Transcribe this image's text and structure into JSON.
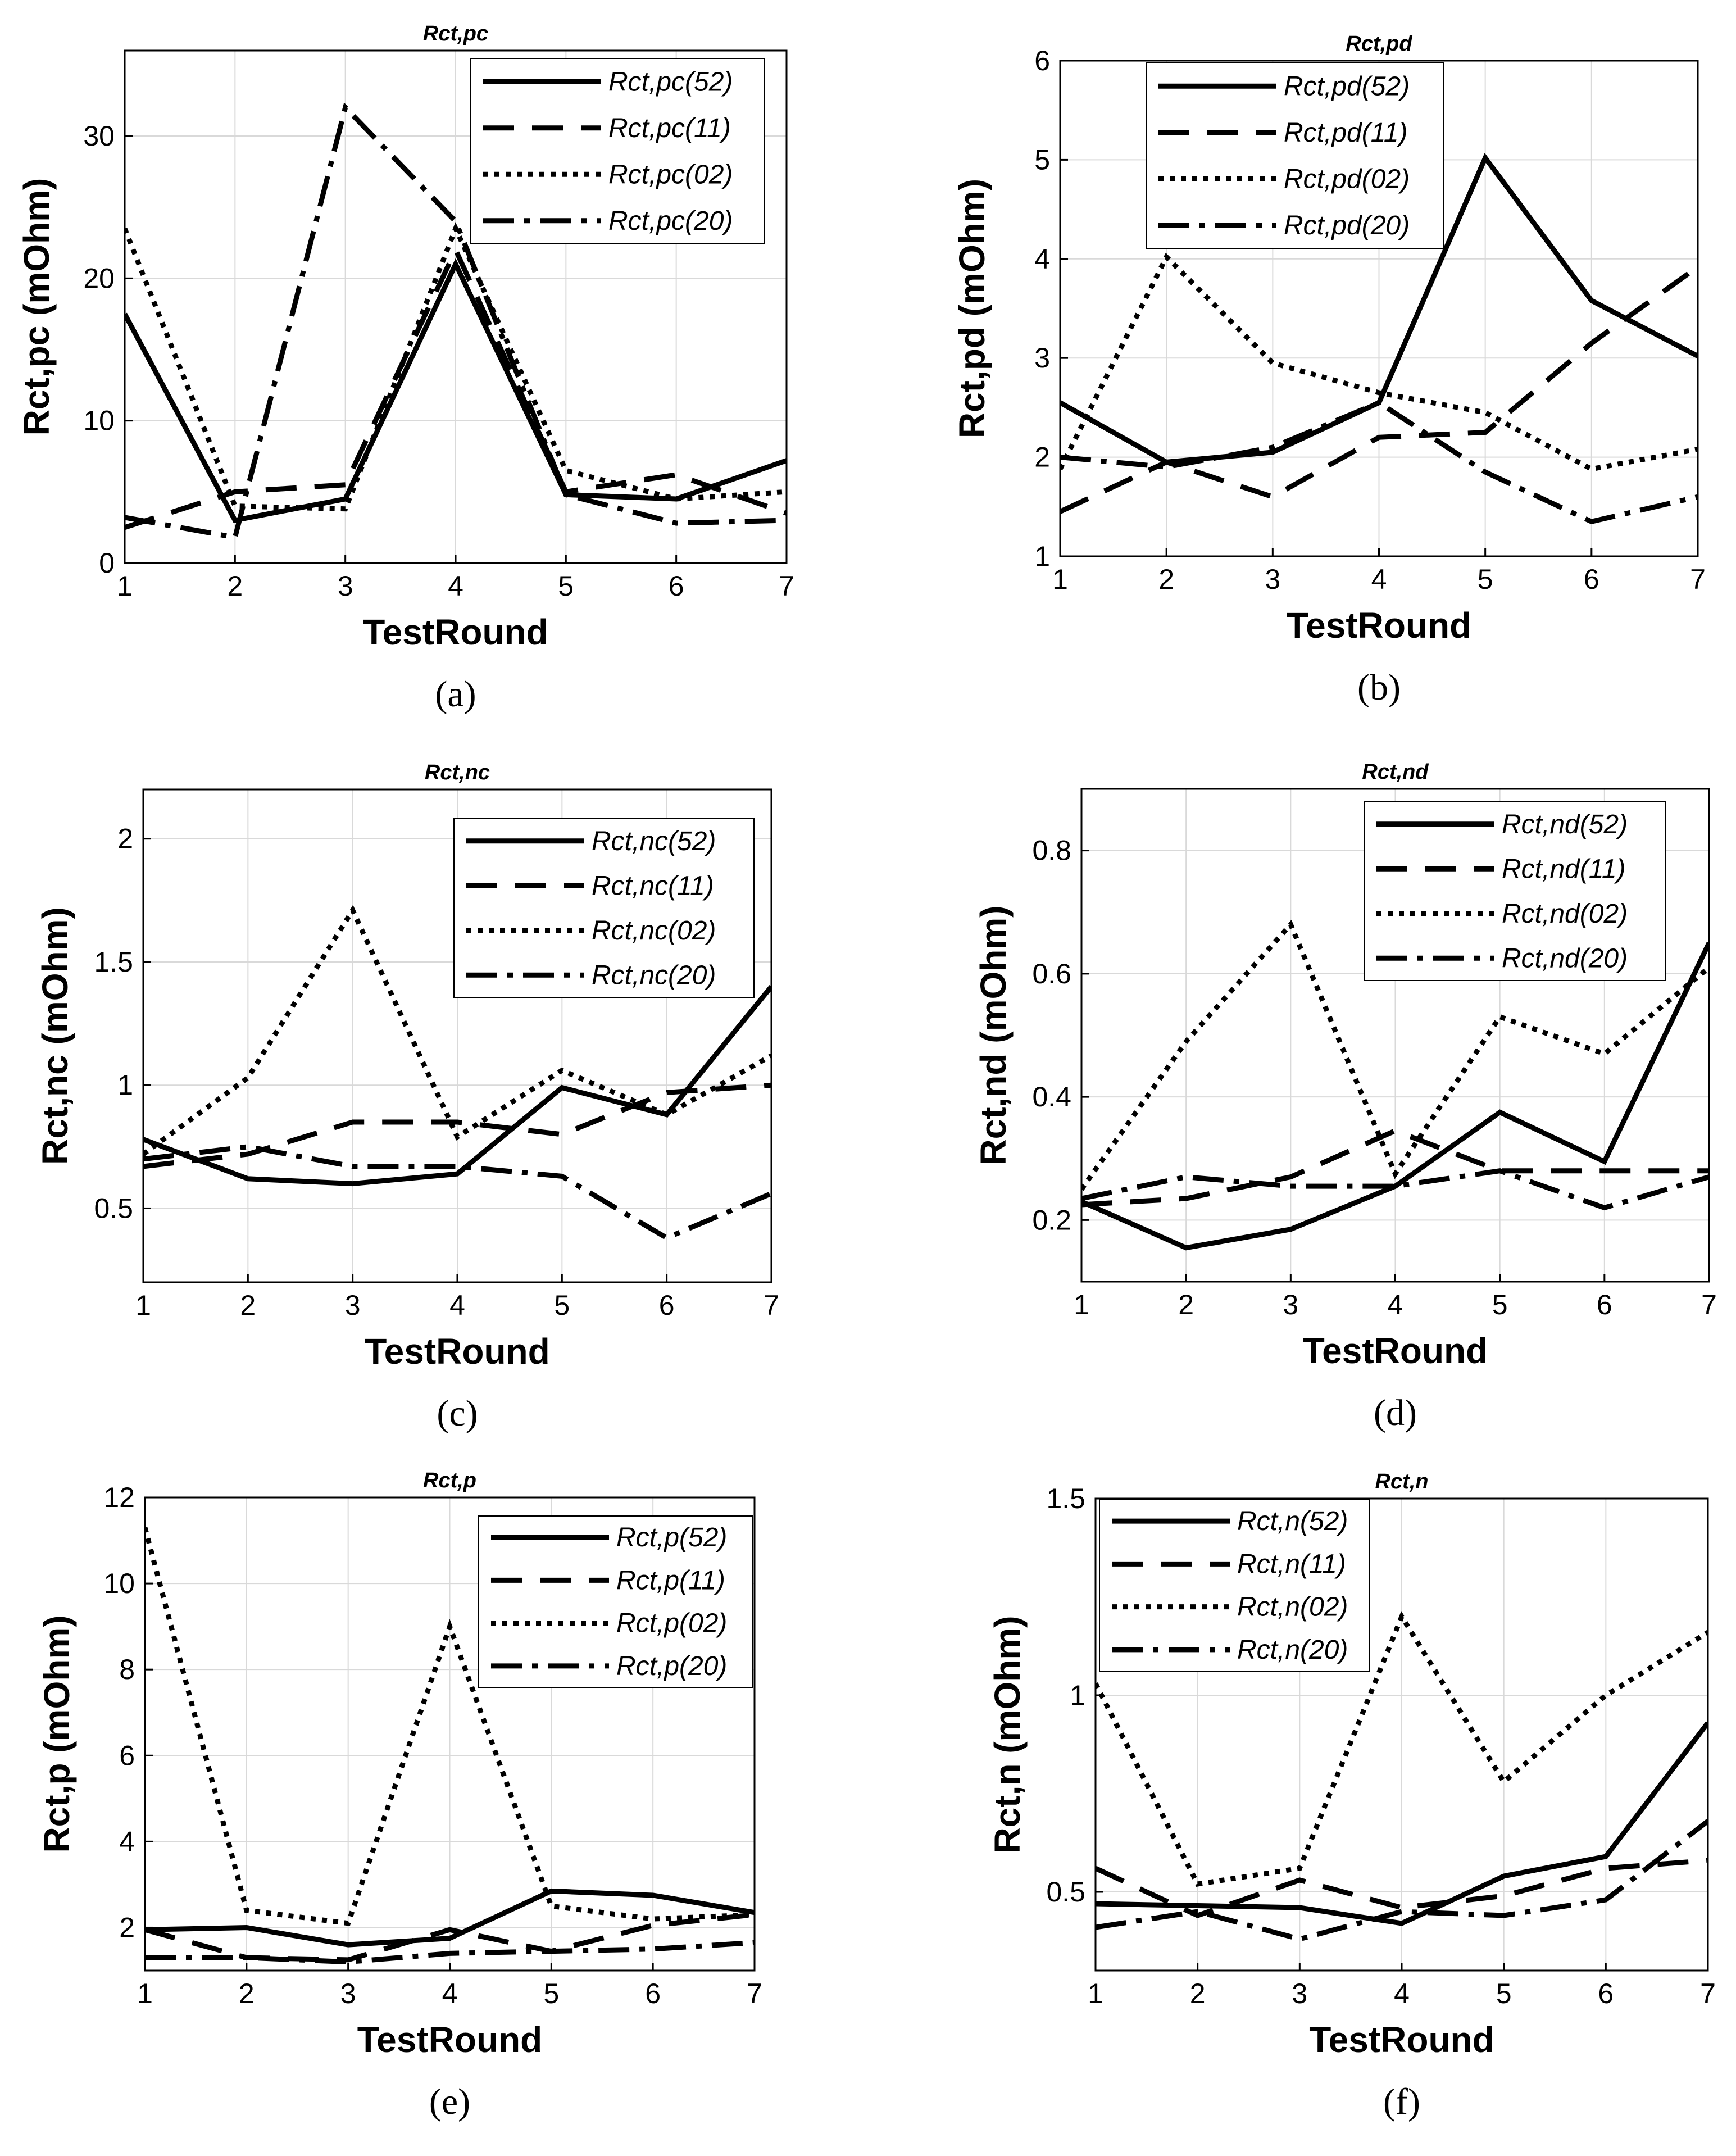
{
  "chart_data": [
    {
      "id": "a",
      "type": "line",
      "title": "Rct,pc",
      "panel_label": "(a)",
      "xlabel": "TestRound",
      "ylabel": "Rct,pc (mOhm)",
      "xlim": [
        1,
        7
      ],
      "ylim": [
        0,
        36
      ],
      "xticks": [
        1,
        2,
        3,
        4,
        5,
        6,
        7
      ],
      "yticks": [
        0,
        10,
        20,
        30
      ],
      "grid": true,
      "legend_position": "top-right",
      "x": [
        1,
        2,
        3,
        4,
        5,
        6,
        7
      ],
      "series": [
        {
          "name": "Rct,pc(52)",
          "style": "solid",
          "values": [
            17.5,
            3.0,
            4.5,
            21.0,
            4.8,
            4.5,
            7.2
          ]
        },
        {
          "name": "Rct,pc(11)",
          "style": "dashed",
          "values": [
            2.5,
            5.0,
            5.5,
            22.0,
            5.0,
            6.2,
            3.5
          ]
        },
        {
          "name": "Rct,pc(02)",
          "style": "dotted",
          "values": [
            23.5,
            4.0,
            3.8,
            23.5,
            6.5,
            4.5,
            5.0
          ]
        },
        {
          "name": "Rct,pc(20)",
          "style": "dashdot",
          "values": [
            3.2,
            1.8,
            32.0,
            24.0,
            4.8,
            2.8,
            3.0
          ]
        }
      ]
    },
    {
      "id": "b",
      "type": "line",
      "title": "Rct,pd",
      "panel_label": "(b)",
      "xlabel": "TestRound",
      "ylabel": "Rct,pd (mOhm)",
      "xlim": [
        1,
        7
      ],
      "ylim": [
        1,
        6
      ],
      "xticks": [
        1,
        2,
        3,
        4,
        5,
        6,
        7
      ],
      "yticks": [
        1,
        2,
        3,
        4,
        5,
        6
      ],
      "grid": true,
      "legend_position": "top-left",
      "x": [
        1,
        2,
        3,
        4,
        5,
        6,
        7
      ],
      "series": [
        {
          "name": "Rct,pd(52)",
          "style": "solid",
          "values": [
            2.55,
            1.95,
            2.05,
            2.55,
            5.02,
            3.58,
            3.02
          ]
        },
        {
          "name": "Rct,pd(11)",
          "style": "dashed",
          "values": [
            1.45,
            1.95,
            1.6,
            2.2,
            2.25,
            3.15,
            3.92
          ]
        },
        {
          "name": "Rct,pd(02)",
          "style": "dotted",
          "values": [
            1.88,
            4.02,
            2.95,
            2.65,
            2.45,
            1.88,
            2.08
          ]
        },
        {
          "name": "Rct,pd(20)",
          "style": "dashdot",
          "values": [
            2.0,
            1.9,
            2.1,
            2.55,
            1.85,
            1.35,
            1.6
          ]
        }
      ]
    },
    {
      "id": "c",
      "type": "line",
      "title": "Rct,nc",
      "panel_label": "(c)",
      "xlabel": "TestRound",
      "ylabel": "Rct,nc (mOhm)",
      "xlim": [
        1,
        7
      ],
      "ylim": [
        0.2,
        2.2
      ],
      "xticks": [
        1,
        2,
        3,
        4,
        5,
        6,
        7
      ],
      "yticks": [
        0.5,
        1,
        1.5,
        2
      ],
      "grid": true,
      "legend_position": "top-right",
      "x": [
        1,
        2,
        3,
        4,
        5,
        6,
        7
      ],
      "series": [
        {
          "name": "Rct,nc(52)",
          "style": "solid",
          "values": [
            0.78,
            0.62,
            0.6,
            0.64,
            0.99,
            0.88,
            1.4
          ]
        },
        {
          "name": "Rct,nc(11)",
          "style": "dashed",
          "values": [
            0.67,
            0.72,
            0.85,
            0.85,
            0.8,
            0.97,
            1.0
          ]
        },
        {
          "name": "Rct,nc(02)",
          "style": "dotted",
          "values": [
            0.72,
            1.03,
            1.71,
            0.79,
            1.06,
            0.88,
            1.12
          ]
        },
        {
          "name": "Rct,nc(20)",
          "style": "dashdot",
          "values": [
            0.7,
            0.75,
            0.67,
            0.67,
            0.63,
            0.38,
            0.56
          ]
        }
      ]
    },
    {
      "id": "d",
      "type": "line",
      "title": "Rct,nd",
      "panel_label": "(d)",
      "xlabel": "TestRound",
      "ylabel": "Rct,nd (mOhm)",
      "xlim": [
        1,
        7
      ],
      "ylim": [
        0.1,
        0.9
      ],
      "xticks": [
        1,
        2,
        3,
        4,
        5,
        6,
        7
      ],
      "yticks": [
        0.2,
        0.4,
        0.6,
        0.8
      ],
      "grid": true,
      "legend_position": "top-right",
      "x": [
        1,
        2,
        3,
        4,
        5,
        6,
        7
      ],
      "series": [
        {
          "name": "Rct,nd(52)",
          "style": "solid",
          "values": [
            0.23,
            0.155,
            0.185,
            0.255,
            0.375,
            0.295,
            0.65
          ]
        },
        {
          "name": "Rct,nd(11)",
          "style": "dashed",
          "values": [
            0.225,
            0.235,
            0.27,
            0.345,
            0.28,
            0.28,
            0.28
          ]
        },
        {
          "name": "Rct,nd(02)",
          "style": "dotted",
          "values": [
            0.25,
            0.49,
            0.68,
            0.275,
            0.53,
            0.47,
            0.61
          ]
        },
        {
          "name": "Rct,nd(20)",
          "style": "dashdot",
          "values": [
            0.235,
            0.27,
            0.255,
            0.255,
            0.28,
            0.22,
            0.27
          ]
        }
      ]
    },
    {
      "id": "e",
      "type": "line",
      "title": "Rct,p",
      "panel_label": "(e)",
      "xlabel": "TestRound",
      "ylabel": "Rct,p (mOhm)",
      "xlim": [
        1,
        7
      ],
      "ylim": [
        1,
        12
      ],
      "xticks": [
        1,
        2,
        3,
        4,
        5,
        6,
        7
      ],
      "yticks": [
        2,
        4,
        6,
        8,
        10,
        12
      ],
      "grid": true,
      "legend_position": "top-right",
      "x": [
        1,
        2,
        3,
        4,
        5,
        6,
        7
      ],
      "series": [
        {
          "name": "Rct,p(52)",
          "style": "solid",
          "values": [
            1.95,
            2.0,
            1.6,
            1.75,
            2.85,
            2.75,
            2.35
          ]
        },
        {
          "name": "Rct,p(11)",
          "style": "dashed",
          "values": [
            1.95,
            1.3,
            1.25,
            1.95,
            1.45,
            2.05,
            2.3
          ]
        },
        {
          "name": "Rct,p(02)",
          "style": "dotted",
          "values": [
            11.3,
            2.4,
            2.1,
            9.0,
            2.5,
            2.2,
            2.3
          ]
        },
        {
          "name": "Rct,p(20)",
          "style": "dashdot",
          "values": [
            1.3,
            1.3,
            1.2,
            1.4,
            1.45,
            1.5,
            1.65
          ]
        }
      ]
    },
    {
      "id": "f",
      "type": "line",
      "title": "Rct,n",
      "panel_label": "(f)",
      "xlabel": "TestRound",
      "ylabel": "Rct,n (mOhm)",
      "xlim": [
        1,
        7
      ],
      "ylim": [
        0.3,
        1.5
      ],
      "xticks": [
        1,
        2,
        3,
        4,
        5,
        6,
        7
      ],
      "yticks": [
        0.5,
        1,
        1.5
      ],
      "grid": true,
      "legend_position": "top-left",
      "x": [
        1,
        2,
        3,
        4,
        5,
        6,
        7
      ],
      "series": [
        {
          "name": "Rct,n(52)",
          "style": "solid",
          "values": [
            0.47,
            0.465,
            0.46,
            0.42,
            0.54,
            0.59,
            0.93
          ]
        },
        {
          "name": "Rct,n(11)",
          "style": "dashed",
          "values": [
            0.56,
            0.44,
            0.53,
            0.46,
            0.49,
            0.56,
            0.58
          ]
        },
        {
          "name": "Rct,n(02)",
          "style": "dotted",
          "values": [
            1.03,
            0.52,
            0.56,
            1.2,
            0.78,
            1.0,
            1.16
          ]
        },
        {
          "name": "Rct,n(20)",
          "style": "dashdot",
          "values": [
            0.41,
            0.45,
            0.38,
            0.45,
            0.44,
            0.48,
            0.68
          ]
        }
      ]
    }
  ]
}
